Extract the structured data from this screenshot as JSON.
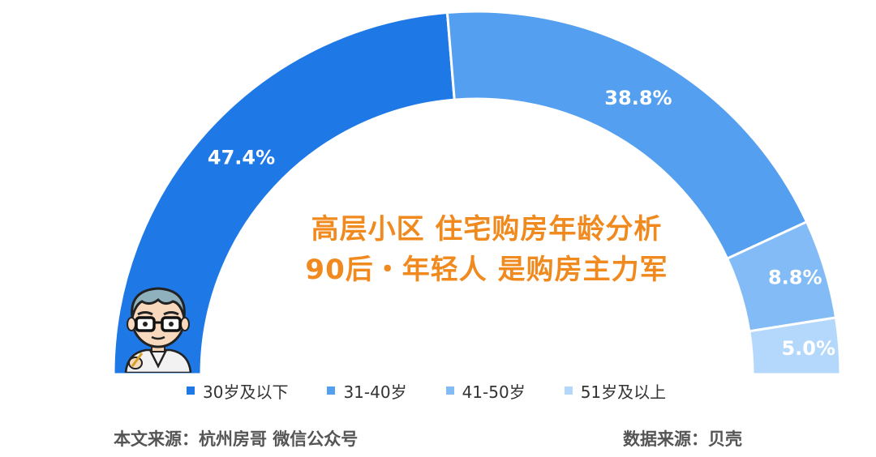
{
  "title": {
    "line1": "高层小区 住宅购房年龄分析",
    "line2": "90后・年轻人 是购房主力军"
  },
  "chart_data": {
    "type": "pie",
    "shape": "semi-donut",
    "categories": [
      "30岁及以下",
      "31-40岁",
      "41-50岁",
      "51岁及以上"
    ],
    "values": [
      47.4,
      38.8,
      8.8,
      5.0
    ],
    "value_labels": [
      "47.4%",
      "38.8%",
      "8.8%",
      "5.0%"
    ],
    "colors": [
      "#1e78e6",
      "#549ff0",
      "#82bbf6",
      "#b4d8fb"
    ],
    "legend_placement": "bottom"
  },
  "footer": {
    "left": "本文来源：杭州房哥 微信公众号",
    "right": "数据来源：贝壳"
  },
  "icons": {
    "avatar": "cartoon-man-glasses-icon"
  }
}
